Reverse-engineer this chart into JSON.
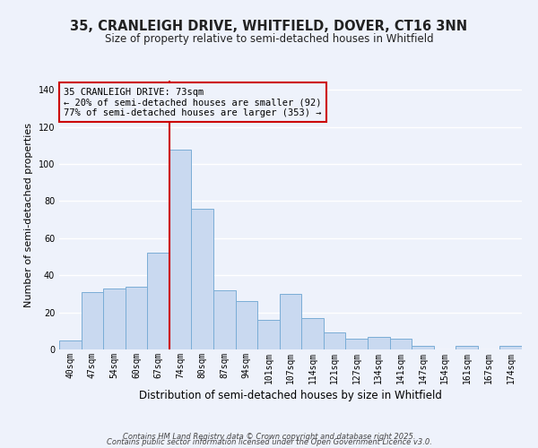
{
  "title": "35, CRANLEIGH DRIVE, WHITFIELD, DOVER, CT16 3NN",
  "subtitle": "Size of property relative to semi-detached houses in Whitfield",
  "xlabel": "Distribution of semi-detached houses by size in Whitfield",
  "ylabel": "Number of semi-detached properties",
  "categories": [
    "40sqm",
    "47sqm",
    "54sqm",
    "60sqm",
    "67sqm",
    "74sqm",
    "80sqm",
    "87sqm",
    "94sqm",
    "101sqm",
    "107sqm",
    "114sqm",
    "121sqm",
    "127sqm",
    "134sqm",
    "141sqm",
    "147sqm",
    "154sqm",
    "161sqm",
    "167sqm",
    "174sqm"
  ],
  "values": [
    5,
    31,
    33,
    34,
    52,
    108,
    76,
    32,
    26,
    16,
    30,
    17,
    9,
    6,
    7,
    6,
    2,
    0,
    2,
    0,
    2
  ],
  "bar_color": "#c9d9f0",
  "bar_edge_color": "#7aadd6",
  "bar_width": 1.0,
  "ylim": [
    0,
    145
  ],
  "yticks": [
    0,
    20,
    40,
    60,
    80,
    100,
    120,
    140
  ],
  "property_label": "35 CRANLEIGH DRIVE: 73sqm",
  "smaller_pct": 20,
  "smaller_count": 92,
  "larger_pct": 77,
  "larger_count": 353,
  "vline_color": "#cc0000",
  "annotation_box_color": "#cc0000",
  "bg_color": "#eef2fb",
  "grid_color": "#ffffff",
  "footer1": "Contains HM Land Registry data © Crown copyright and database right 2025.",
  "footer2": "Contains public sector information licensed under the Open Government Licence v3.0.",
  "title_fontsize": 10.5,
  "subtitle_fontsize": 8.5,
  "xlabel_fontsize": 8.5,
  "ylabel_fontsize": 8,
  "tick_fontsize": 7,
  "annotation_fontsize": 7.5,
  "footer_fontsize": 6
}
